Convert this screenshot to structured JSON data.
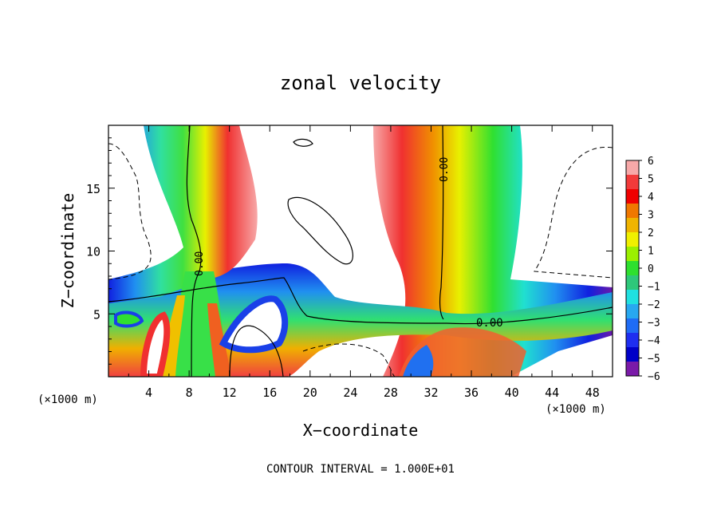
{
  "chart_data": {
    "type": "heatmap",
    "title": "zonal velocity",
    "xlabel": "X−coordinate",
    "ylabel": "Z−coordinate",
    "x_unit_left": "(×1000 m)",
    "x_unit_right": "(×1000 m)",
    "xlim": [
      0,
      50
    ],
    "ylim": [
      0,
      20
    ],
    "x_ticks": [
      "4",
      "8",
      "12",
      "16",
      "20",
      "24",
      "28",
      "32",
      "36",
      "40",
      "44",
      "48"
    ],
    "y_ticks": [
      "5",
      "10",
      "15"
    ],
    "colorbar": {
      "ticks": [
        "6",
        "5",
        "4",
        "3",
        "2",
        "1",
        "0",
        "−1",
        "−2",
        "−3",
        "−4",
        "−5",
        "−6"
      ],
      "range": [
        -6,
        6
      ],
      "colors": [
        "#f7a8a8",
        "#f23a3a",
        "#f00000",
        "#f07800",
        "#f0b400",
        "#f0f000",
        "#9bf000",
        "#2ee02e",
        "#2ec87a",
        "#20e0e0",
        "#28a8f0",
        "#1f6cf5",
        "#1e2ef0",
        "#0000c8",
        "#7a1aa8"
      ]
    },
    "contour_labels": [
      "0.00",
      "0.00",
      "0.00"
    ],
    "footer": "CONTOUR INTERVAL = 1.000E+01"
  }
}
